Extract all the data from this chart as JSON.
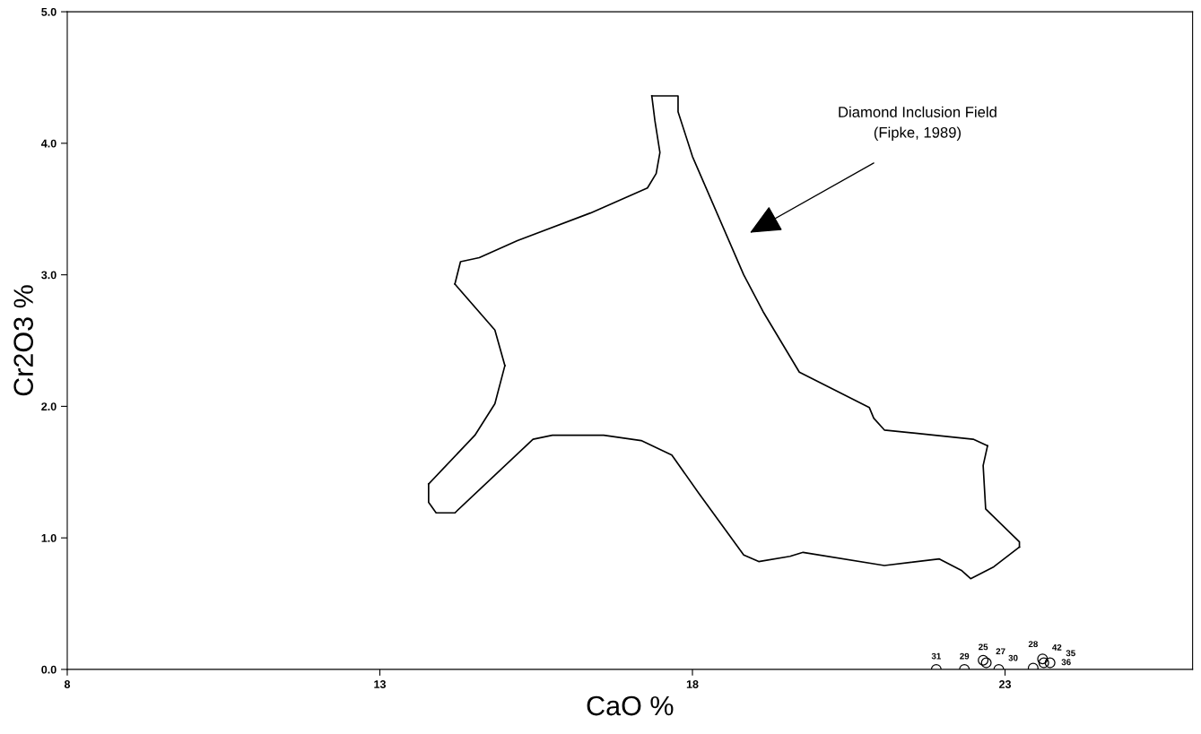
{
  "chart_data": {
    "type": "line",
    "xlabel": "CaO %",
    "ylabel": "Cr2O3 %",
    "xlim": [
      8,
      26
    ],
    "ylim": [
      0,
      5
    ],
    "xticks": [
      8,
      13,
      18,
      23
    ],
    "yticks": [
      {
        "value": 0,
        "label": "0.0"
      },
      {
        "value": 1,
        "label": "1.0"
      },
      {
        "value": 2,
        "label": "2.0"
      },
      {
        "value": 3,
        "label": "3.0"
      },
      {
        "value": 4,
        "label": "4.0"
      },
      {
        "value": 5,
        "label": "5.0"
      }
    ],
    "grid": false,
    "legend": false,
    "series": [
      {
        "color": "#000000",
        "marker": "none",
        "line_style": "solid",
        "x": [
          17.35,
          17.77,
          17.77,
          18.0,
          18.82,
          19.13,
          19.71,
          20.83,
          20.9,
          21.07,
          22.49,
          22.72
        ],
        "values": [
          4.36,
          4.36,
          4.24,
          3.9,
          3.0,
          2.72,
          2.26,
          1.99,
          1.91,
          1.82,
          1.75,
          1.7
        ]
      },
      {
        "color": "#000000",
        "marker": "none",
        "line_style": "solid",
        "x": [
          22.72,
          22.65,
          22.69,
          23.23,
          23.23
        ],
        "values": [
          1.7,
          1.55,
          1.22,
          0.97,
          0.93
        ]
      },
      {
        "color": "#000000",
        "marker": "none",
        "line_style": "solid",
        "x": [
          23.23,
          22.82,
          22.45,
          22.31,
          21.95,
          21.07,
          19.77,
          19.56,
          19.06,
          18.82,
          18.1,
          17.67,
          17.18,
          16.58,
          15.76,
          15.45,
          14.2,
          13.9,
          13.78,
          13.78
        ],
        "values": [
          0.93,
          0.78,
          0.69,
          0.75,
          0.84,
          0.79,
          0.89,
          0.86,
          0.82,
          0.87,
          1.34,
          1.63,
          1.74,
          1.78,
          1.78,
          1.75,
          1.19,
          1.19,
          1.27,
          1.41
        ]
      },
      {
        "color": "#000000",
        "marker": "none",
        "line_style": "solid",
        "x": [
          13.78,
          14.52,
          14.84,
          15.0
        ],
        "values": [
          1.41,
          1.78,
          2.02,
          2.31
        ]
      },
      {
        "color": "#000000",
        "marker": "none",
        "line_style": "solid",
        "x": [
          15.0,
          14.84,
          14.2
        ],
        "values": [
          2.31,
          2.58,
          2.93
        ]
      },
      {
        "color": "#000000",
        "marker": "none",
        "line_style": "solid",
        "x": [
          14.2,
          14.29,
          14.59,
          15.2,
          16.37,
          17.28,
          17.42,
          17.48,
          17.4,
          17.35
        ],
        "values": [
          2.93,
          3.1,
          3.13,
          3.26,
          3.47,
          3.66,
          3.77,
          3.93,
          4.17,
          4.36
        ]
      },
      {
        "type": "scatter",
        "color": "#000000",
        "marker": "circle",
        "x": [
          21.9,
          22.35,
          22.65,
          22.7,
          22.9,
          23.45,
          23.6,
          23.62,
          23.72
        ],
        "values": [
          0.0,
          0.0,
          0.07,
          0.05,
          0.0,
          0.01,
          0.08,
          0.05,
          0.05
        ]
      }
    ],
    "annotations": [
      "Diamond Inclusion Field\n(Fipke, 1989)",
      {
        "text": "31",
        "x": 21.9,
        "y": 0.0
      },
      {
        "text": "29",
        "x": 22.35,
        "y": 0.0
      },
      {
        "text": "25",
        "x": 22.65,
        "y": 0.07
      },
      {
        "text": "27",
        "x": 22.7,
        "y": 0.05
      },
      {
        "text": "30",
        "x": 22.9,
        "y": 0.0
      },
      {
        "text": "28",
        "x": 23.45,
        "y": 0.01
      },
      {
        "text": "42",
        "x": 23.6,
        "y": 0.08
      },
      {
        "text": "35",
        "x": 23.62,
        "y": 0.05
      },
      {
        "text": "36",
        "x": 23.72,
        "y": 0.05
      }
    ]
  }
}
